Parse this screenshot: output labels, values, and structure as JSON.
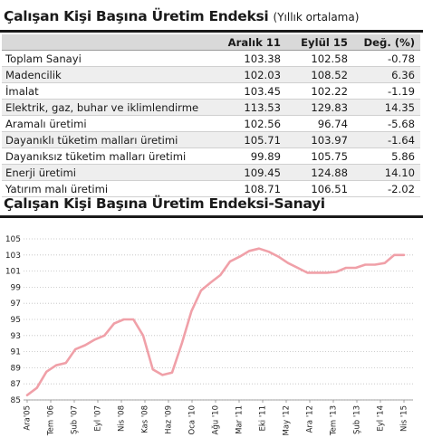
{
  "table": {
    "title": "Çalışan Kişi Başına Üretim Endeksi",
    "subtitle": "(Yıllık ortalama)",
    "headers": [
      "",
      "Aralık 11",
      "Eylül 15",
      "Değ. (%)"
    ],
    "rows": [
      {
        "label": "Toplam Sanayi",
        "a": "103.38",
        "b": "102.58",
        "c": "-0.78"
      },
      {
        "label": "Madencilik",
        "a": "102.03",
        "b": "108.52",
        "c": "6.36"
      },
      {
        "label": "İmalat",
        "a": "103.45",
        "b": "102.22",
        "c": "-1.19"
      },
      {
        "label": "Elektrik, gaz, buhar ve iklimlendirme",
        "a": "113.53",
        "b": "129.83",
        "c": "14.35"
      },
      {
        "label": "Aramalı üretimi",
        "a": "102.56",
        "b": "96.74",
        "c": "-5.68"
      },
      {
        "label": "Dayanıklı tüketim malları üretimi",
        "a": "105.71",
        "b": "103.97",
        "c": "-1.64"
      },
      {
        "label": "Dayanıksız tüketim malları üretimi",
        "a": "99.89",
        "b": "105.75",
        "c": "5.86"
      },
      {
        "label": "Enerji üretimi",
        "a": "109.45",
        "b": "124.88",
        "c": "14.10"
      },
      {
        "label": "Yatırım malı üretimi",
        "a": "108.71",
        "b": "106.51",
        "c": "-2.02"
      }
    ]
  },
  "chart_data": {
    "type": "line",
    "title": "Çalışan Kişi Başına Üretim Endeksi-Sanayi",
    "xlabel": "",
    "ylabel": "",
    "ylim": [
      85,
      105
    ],
    "yticks": [
      85,
      87,
      89,
      91,
      93,
      95,
      97,
      99,
      101,
      103,
      105
    ],
    "grid": true,
    "line_color": "#f0a0a8",
    "xtick_labels": [
      "Ara'05",
      "Tem '06",
      "Şub '07",
      "Eyl '07",
      "Nis '08",
      "Kas '08",
      "Haz '09",
      "Oca '10",
      "Ağu '10",
      "Mar '11",
      "Eki '11",
      "May '12",
      "Ara '12",
      "Tem '13",
      "Şub '13",
      "Eyl '14",
      "Nis '15"
    ],
    "series": [
      {
        "values": [
          85.6,
          86.5,
          88.5,
          89.3,
          89.6,
          91.3,
          91.8,
          92.5,
          93.0,
          94.5,
          95.0,
          95.0,
          93.0,
          88.8,
          88.1,
          88.4,
          92.0,
          96.0,
          98.6,
          99.6,
          100.5,
          102.2,
          102.8,
          103.5,
          103.8,
          103.4,
          102.8,
          102.0,
          101.4,
          100.8,
          100.8,
          100.8,
          100.9,
          101.4,
          101.4,
          101.8,
          101.8,
          102.0,
          103.0,
          103.0
        ]
      }
    ]
  }
}
